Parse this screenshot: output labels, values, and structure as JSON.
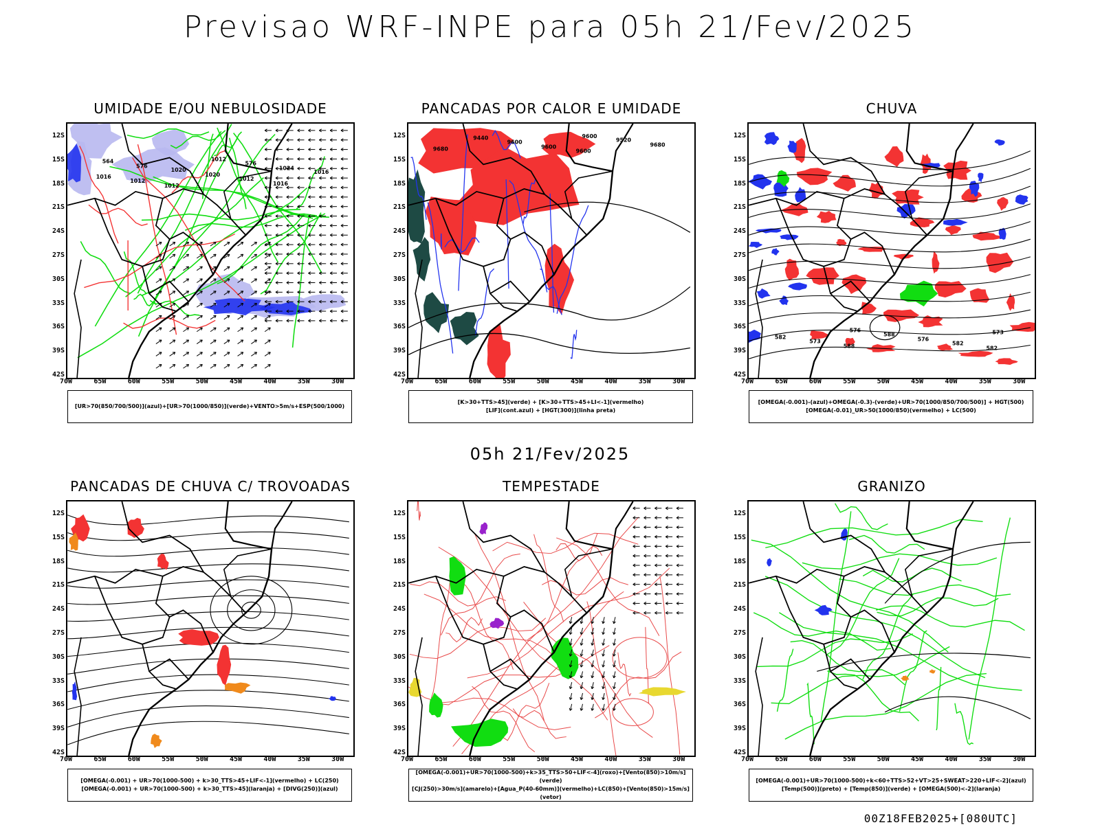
{
  "title": "Previsao WRF-INPE  para 05h 21/Fev/2025",
  "mid_title": "05h 21/Fev/2025",
  "footer": "00Z18FEB2025+[080UTC]",
  "lat_labels": [
    "12S",
    "15S",
    "18S",
    "21S",
    "24S",
    "27S",
    "30S",
    "33S",
    "36S",
    "39S",
    "42S"
  ],
  "lon_labels": [
    "70W",
    "65W",
    "60W",
    "55W",
    "50W",
    "45W",
    "40W",
    "35W",
    "30W"
  ],
  "panels": [
    {
      "id": "umidade",
      "title": "UMIDADE E/OU NEBULOSIDADE",
      "legend": [
        "[UR>70(850/700/500)](azul)+[UR>70(1000/850)](verde)+VENTO>5m/s+ESP(500/1000)"
      ],
      "contour_labels": [
        "1012",
        "1016",
        "1012",
        "1012",
        "1016",
        "1020",
        "1016",
        "1020",
        "1024",
        "576",
        "576",
        "564",
        "1012"
      ]
    },
    {
      "id": "pancadas",
      "title": "PANCADAS POR CALOR E UMIDADE",
      "legend": [
        "[K>30+TTS>45](verde) + [K>30+TTS>45+LI<-1](vermelho)",
        "[LIF](cont.azul) + [HGT(300)](linha preta)"
      ],
      "contour_labels": [
        "9600",
        "9680",
        "9600",
        "9680",
        "9600",
        "9520",
        "9440",
        "9600"
      ]
    },
    {
      "id": "chuva",
      "title": "CHUVA",
      "legend": [
        "[OMEGA(-0.001)-(azul)+OMEGA(-0.3)-(verde)+UR>70(1000/850/700/500)] + HGT(500)",
        "[OMEGA(-0.01)_UR>50(1000/850)(vermelho) + LC(500)"
      ],
      "contour_labels": [
        "582",
        "588",
        "582",
        "573",
        "576",
        "582",
        "588",
        "573",
        "576"
      ]
    },
    {
      "id": "trovoadas",
      "title": "PANCADAS DE CHUVA C/ TROVOADAS",
      "legend": [
        "[OMEGA(-0.001) + UR>70(1000-500) + k>30_TTS>45+LIF<-1](vermelho) + LC(250)",
        "[OMEGA(-0.001) + UR>70(1000-500) + k>30_TTS>45](laranja) + [DIVG(250)](azul)"
      ],
      "contour_labels": []
    },
    {
      "id": "tempestade",
      "title": "TEMPESTADE",
      "legend": [
        "[OMEGA(-0.001)+UR>70(1000-500)+k>35_TTS>50+LIF<-4](roxo)+[Vento(850)>10m/s](verde)",
        "[CJ(250)>30m/s](amarelo)+[Agua_P(40-60mm)](vermelho)+LC(850)+[Vento(850)>15m/s](vetor)"
      ],
      "contour_labels": []
    },
    {
      "id": "granizo",
      "title": "GRANIZO",
      "legend": [
        "[OMEGA(-0.001)+UR>70(1000-500)+k<60+TTS>52+VT>25+SWEAT>220+LIF<-2](azul)",
        "[Temp(500)](preto) + [Temp(850)](verde) + [OMEGA(500)<-2](laranja)"
      ],
      "contour_labels": []
    }
  ],
  "colors": {
    "blue": "#2233ee",
    "lightblue": "#b8b8f0",
    "green": "#11dd11",
    "red": "#f33333",
    "darkteal": "#1e4a44",
    "orange": "#f08a1c",
    "yellow": "#e8d830",
    "purple": "#9922cc"
  }
}
